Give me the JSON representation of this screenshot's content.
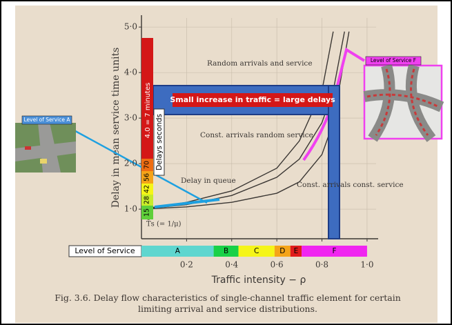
{
  "chart_data": {
    "type": "line",
    "title": "Fig. 3.6. Delay flow characteristics of single-channel traffic element for certain limiting arrival and service distributions.",
    "xlabel": "Traffic intensity − ρ",
    "ylabel": "Delay in mean service time units",
    "xlim": [
      0,
      1.04
    ],
    "ylim": [
      0.35,
      5.2
    ],
    "grid": true,
    "xticks": [
      {
        "value": 0.2,
        "label": "0·2"
      },
      {
        "value": 0.4,
        "label": "0·4"
      },
      {
        "value": 0.6,
        "label": "0·6"
      },
      {
        "value": 0.8,
        "label": "0·8"
      },
      {
        "value": 1.0,
        "label": "1·0"
      }
    ],
    "yticks": [
      {
        "value": 1,
        "label": "1·0"
      },
      {
        "value": 2,
        "label": "2·0"
      },
      {
        "value": 3,
        "label": "3·0"
      },
      {
        "value": 4,
        "label": "4·0"
      },
      {
        "value": 5,
        "label": "5·0"
      }
    ],
    "series": [
      {
        "name": "Random arrivals and service",
        "color": "#3a3633",
        "x": [
          0,
          0.2,
          0.4,
          0.6,
          0.7,
          0.8,
          0.85
        ],
        "values": [
          1.0,
          1.15,
          1.4,
          1.9,
          2.5,
          3.6,
          4.9
        ]
      },
      {
        "name": "Const. arrivals random service",
        "color": "#3a3633",
        "x": [
          0,
          0.2,
          0.4,
          0.6,
          0.7,
          0.8,
          0.85,
          0.9
        ],
        "values": [
          1.0,
          1.1,
          1.3,
          1.7,
          2.1,
          2.9,
          3.6,
          4.9
        ]
      },
      {
        "name": "Const. arrivals const. service",
        "color": "#3a3633",
        "x": [
          0,
          0.2,
          0.4,
          0.6,
          0.7,
          0.8,
          0.85,
          0.92
        ],
        "values": [
          1.0,
          1.05,
          1.15,
          1.35,
          1.6,
          2.2,
          2.9,
          4.9
        ]
      }
    ],
    "annotations": {
      "queue": "Delay in queue",
      "service_time": "T̄s (= 1/μ)",
      "delays_unit": "Delays seconds",
      "delay_seconds": [
        15,
        28,
        42,
        56,
        70
      ],
      "top_delay": "4.0 = 7 minutes",
      "callout": "Small increase in traffic = large delays",
      "los_a": "Level of Service A",
      "los_f": "Level of Service F"
    },
    "level_of_service": {
      "label": "Level of Service",
      "grades": [
        "A",
        "B",
        "C",
        "D",
        "E",
        "F"
      ],
      "colors": [
        "#5fd6cf",
        "#19d147",
        "#f5f518",
        "#f5a418",
        "#e01b1b",
        "#f025f0"
      ],
      "bounds": [
        0,
        0.32,
        0.43,
        0.59,
        0.66,
        0.71,
        1.0
      ]
    }
  }
}
